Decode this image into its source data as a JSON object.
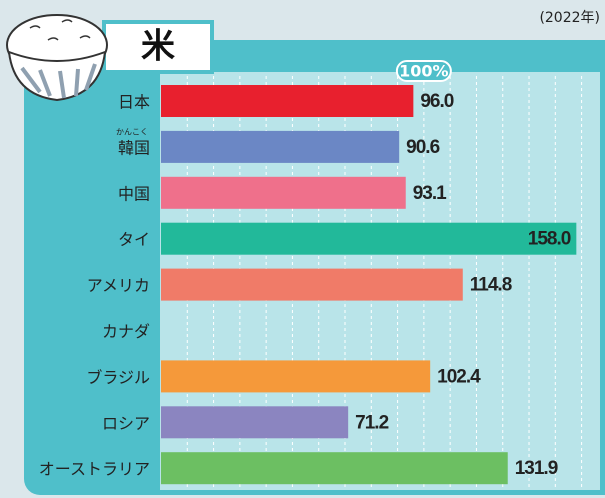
{
  "chart_data": {
    "type": "hbar",
    "title": "米",
    "subtitle": "(2022年)",
    "categories": [
      "日本",
      "韓国",
      "中国",
      "タイ",
      "アメリカ",
      "カナダ",
      "ブラジル",
      "ロシア",
      "オーストラリア"
    ],
    "furigana": [
      null,
      "かんこく",
      null,
      null,
      null,
      null,
      null,
      null,
      null
    ],
    "values": [
      96.0,
      90.6,
      93.1,
      158.0,
      114.8,
      null,
      102.4,
      71.2,
      131.9
    ],
    "value_labels": [
      "96.0",
      "90.6",
      "93.1",
      "158.0",
      "114.8",
      null,
      "102.4",
      "71.2",
      "131.9"
    ],
    "colors": [
      "#e8202e",
      "#6b87c5",
      "#ef708b",
      "#22b99a",
      "#f07b68",
      null,
      "#f5993a",
      "#8b85c0",
      "#6cbf62"
    ],
    "reference": {
      "value": 100,
      "label": "100%"
    },
    "xlim": [
      0,
      167
    ],
    "xticks": [
      10,
      20,
      30,
      40,
      50,
      60,
      70,
      80,
      90,
      100,
      110,
      120,
      130,
      140,
      150,
      160
    ],
    "grid": true
  }
}
